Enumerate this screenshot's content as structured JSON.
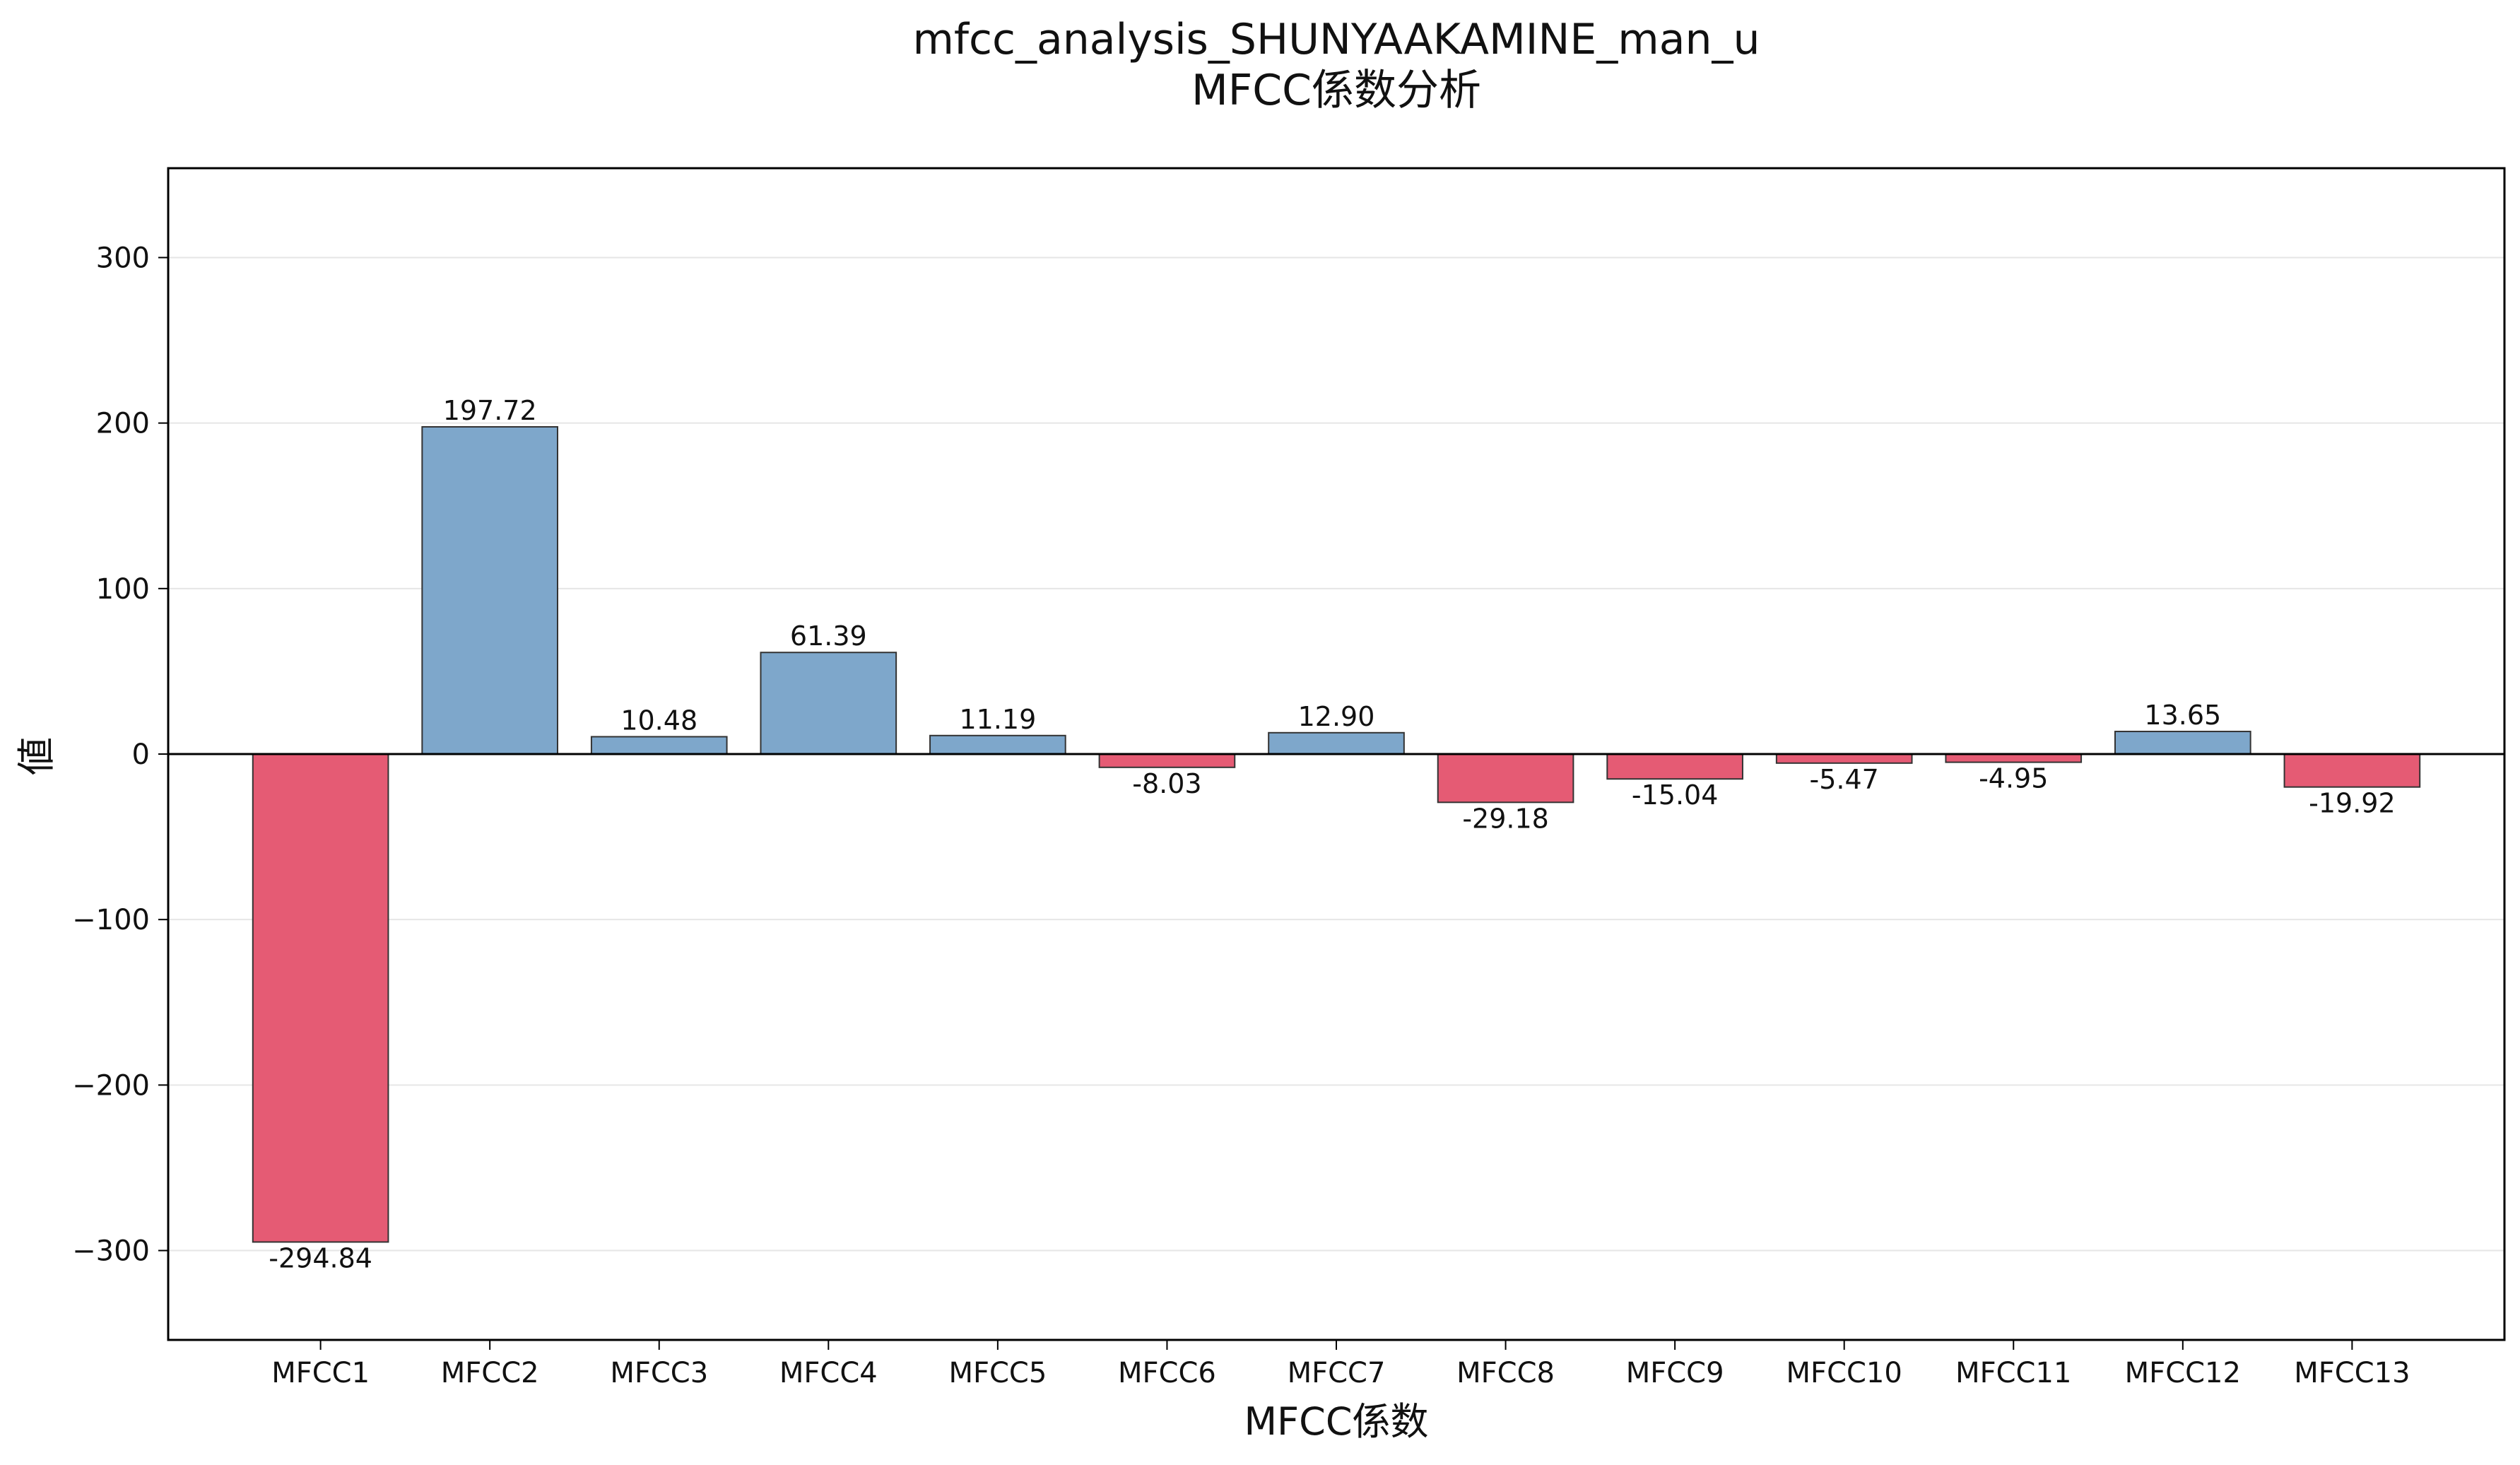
{
  "chart_data": {
    "type": "bar",
    "title": "mfcc_analysis_SHUNYAAKAMINE_man_u",
    "subtitle": "MFCC係数分析",
    "xlabel": "MFCC係数",
    "ylabel": "値",
    "categories": [
      "MFCC1",
      "MFCC2",
      "MFCC3",
      "MFCC4",
      "MFCC5",
      "MFCC6",
      "MFCC7",
      "MFCC8",
      "MFCC9",
      "MFCC10",
      "MFCC11",
      "MFCC12",
      "MFCC13"
    ],
    "values": [
      -294.84,
      197.72,
      10.48,
      61.39,
      11.19,
      -8.03,
      12.9,
      -29.18,
      -15.04,
      -5.47,
      -4.95,
      13.65,
      -19.92
    ],
    "data_labels": [
      "-294.84",
      "197.72",
      "10.48",
      "61.39",
      "11.19",
      "-8.03",
      "12.90",
      "-29.18",
      "-15.04",
      "-5.47",
      "-4.95",
      "13.65",
      "-19.92"
    ],
    "ylim": [
      -354,
      354
    ],
    "yticks": [
      300,
      200,
      100,
      0,
      -100,
      -200,
      -300
    ],
    "ytick_labels": [
      "300",
      "200",
      "100",
      "0",
      "−100",
      "−200",
      "−300"
    ],
    "grid": "horizontal",
    "legend": "none",
    "colors": {
      "positive": "#7ea7cb",
      "negative": "#e55b74",
      "bar_edge": "#333333",
      "grid": "#e6e6e6",
      "zero_line": "#000000"
    }
  }
}
